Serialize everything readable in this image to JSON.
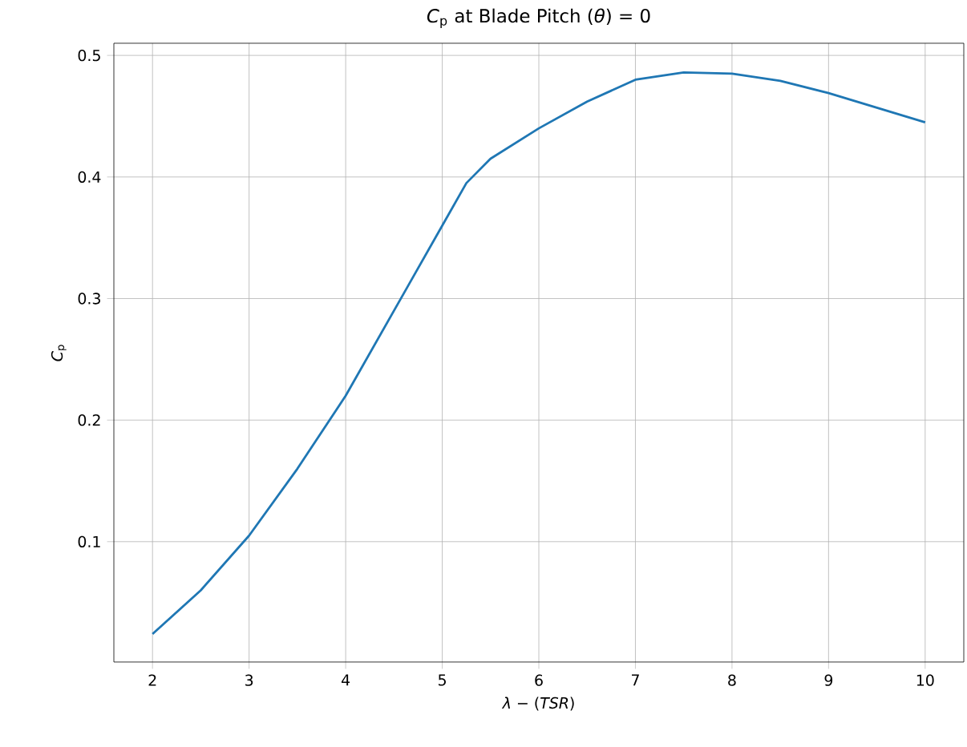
{
  "chart_data": {
    "type": "line",
    "title": "*C*$_{p}$ at Blade Pitch (*θ*) = 0",
    "xlabel": "*λ* −  (*TSR*)",
    "ylabel": "*C*$_{p}$",
    "x": [
      2,
      2.5,
      3,
      3.5,
      4,
      4.5,
      5,
      5.25,
      5.5,
      6,
      6.5,
      7,
      7.5,
      8,
      8.5,
      9,
      9.5,
      10
    ],
    "series": [
      {
        "color": "#1f77b4",
        "values": [
          0.024,
          0.06,
          0.105,
          0.16,
          0.22,
          0.29,
          0.36,
          0.395,
          0.415,
          0.44,
          0.462,
          0.48,
          0.486,
          0.485,
          0.479,
          0.469,
          0.457,
          0.445
        ]
      }
    ],
    "xlim": [
      1.6,
      10.4
    ],
    "ylim": [
      0.001,
      0.51
    ],
    "xticks": [
      2,
      3,
      4,
      5,
      6,
      7,
      8,
      9,
      10
    ],
    "yticks": [
      0.1,
      0.2,
      0.3,
      0.4,
      0.5
    ],
    "grid": true,
    "marker": "none",
    "line_style": "solid"
  }
}
